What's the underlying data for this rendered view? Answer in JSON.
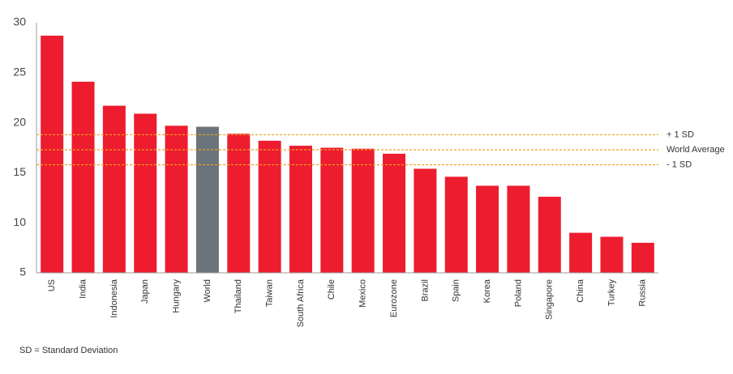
{
  "chart_data": {
    "type": "bar",
    "categories": [
      "US",
      "India",
      "Indonesia",
      "Japan",
      "Hungary",
      "World",
      "Thailand",
      "Taiwan",
      "South Africa",
      "Chile",
      "Mexico",
      "Eurozone",
      "Brazil",
      "Spain",
      "Korea",
      "Poland",
      "Singapore",
      "China",
      "Turkey",
      "Russia"
    ],
    "values": [
      28.7,
      24.1,
      21.7,
      20.9,
      19.7,
      19.6,
      18.9,
      18.2,
      17.7,
      17.5,
      17.4,
      16.9,
      15.4,
      14.6,
      13.7,
      13.7,
      12.6,
      9.0,
      8.6,
      8.0
    ],
    "colors": [
      "#ed1c2e",
      "#ed1c2e",
      "#ed1c2e",
      "#ed1c2e",
      "#ed1c2e",
      "#6b747b",
      "#ed1c2e",
      "#ed1c2e",
      "#ed1c2e",
      "#ed1c2e",
      "#ed1c2e",
      "#ed1c2e",
      "#ed1c2e",
      "#ed1c2e",
      "#ed1c2e",
      "#ed1c2e",
      "#ed1c2e",
      "#ed1c2e",
      "#ed1c2e",
      "#ed1c2e"
    ],
    "ylim": [
      5,
      30
    ],
    "yticks": [
      5,
      10,
      15,
      20,
      25,
      30
    ],
    "grid": false,
    "reference_lines": [
      {
        "label": "+ 1 SD",
        "value": 18.8
      },
      {
        "label": "World Average",
        "value": 17.3
      },
      {
        "label": "- 1 SD",
        "value": 15.8
      }
    ],
    "reference_color": "#f0a020",
    "footnote": "SD = Standard Deviation"
  }
}
